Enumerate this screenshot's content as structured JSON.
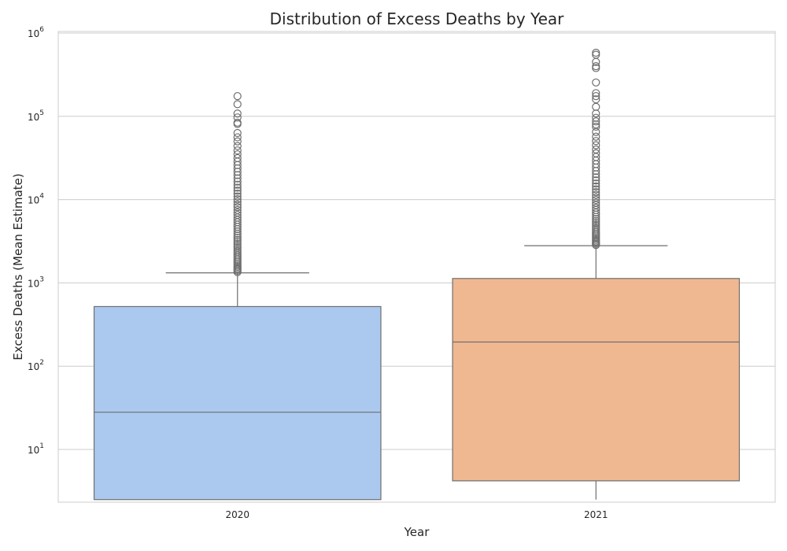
{
  "chart_data": {
    "type": "boxplot",
    "title": "Distribution of Excess Deaths by Year",
    "xlabel": "Year",
    "ylabel": "Excess Deaths (Mean Estimate)",
    "yscale": "log",
    "ylim": [
      2.5,
      1000000
    ],
    "yticks": [
      {
        "base": "10",
        "exp": "1",
        "value": 10
      },
      {
        "base": "10",
        "exp": "2",
        "value": 100
      },
      {
        "base": "10",
        "exp": "3",
        "value": 1000
      },
      {
        "base": "10",
        "exp": "4",
        "value": 10000
      },
      {
        "base": "10",
        "exp": "5",
        "value": 100000
      },
      {
        "base": "10",
        "exp": "6",
        "value": 1000000
      }
    ],
    "grid": true,
    "categories": [
      "2020",
      "2021"
    ],
    "boxes": [
      {
        "category": "2020",
        "color": "#abc9ee",
        "whisker_low": 2.5,
        "q1": 2.5,
        "median": 28,
        "q3": 520,
        "whisker_high": 1320,
        "outliers": [
          1350,
          1400,
          1450,
          1500,
          1560,
          1620,
          1700,
          1780,
          1860,
          1950,
          2050,
          2150,
          2260,
          2380,
          2500,
          2640,
          2780,
          2930,
          3100,
          3280,
          3470,
          3680,
          3900,
          4150,
          4420,
          4700,
          5000,
          5350,
          5700,
          6100,
          6550,
          7000,
          7500,
          8100,
          8700,
          9400,
          10100,
          10900,
          11800,
          12800,
          13900,
          15100,
          16500,
          18000,
          19700,
          21600,
          23700,
          26000,
          28600,
          31500,
          35000,
          39000,
          44000,
          50000,
          56000,
          63000,
          81000,
          84000,
          97000,
          108000,
          140000,
          175000
        ]
      },
      {
        "category": "2021",
        "color": "#f0b891",
        "whisker_low": 2.5,
        "q1": 4.2,
        "median": 195,
        "q3": 1130,
        "whisker_high": 2800,
        "outliers": [
          2850,
          2950,
          3050,
          3150,
          3270,
          3400,
          3540,
          3700,
          3870,
          4050,
          4250,
          4470,
          4700,
          4950,
          5230,
          5530,
          5850,
          6200,
          6600,
          7000,
          7500,
          8000,
          8600,
          9200,
          9900,
          10600,
          11400,
          12300,
          13300,
          14400,
          15600,
          17000,
          18500,
          20200,
          22100,
          24300,
          26700,
          29400,
          32500,
          36000,
          40000,
          45000,
          50500,
          57000,
          65000,
          75000,
          80000,
          87000,
          96000,
          108000,
          130000,
          160000,
          175000,
          190000,
          255000,
          380000,
          400000,
          450000,
          550000,
          580000
        ]
      }
    ]
  }
}
